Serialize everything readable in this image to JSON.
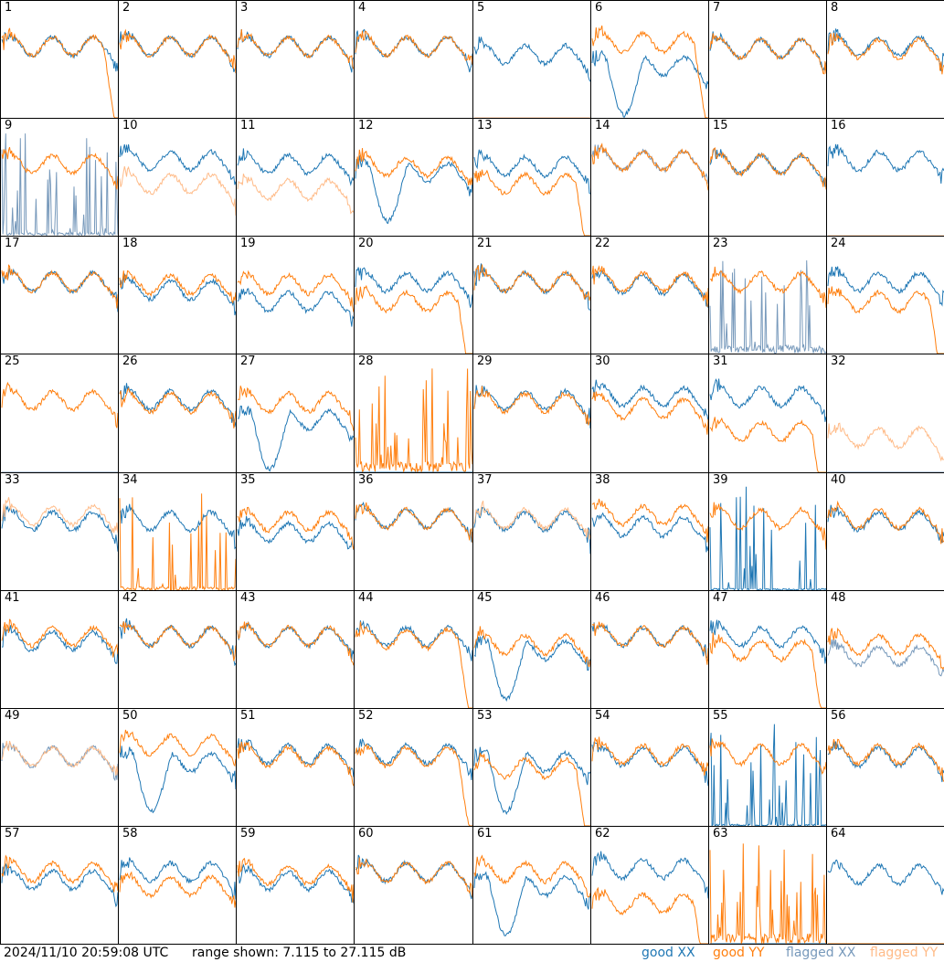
{
  "footer": {
    "timestamp": "2024/11/10 20:59:08 UTC",
    "range_text": "range shown: 7.115 to 27.115 dB",
    "legend": {
      "good_xx": "good XX",
      "good_yy": "good YY",
      "flagged_xx": "flagged XX",
      "flagged_yy": "flagged YY"
    }
  },
  "colors": {
    "good_xx": "#1f77b4",
    "good_yy": "#ff7f0e",
    "flagged_xx": "#7799bb",
    "flagged_yy": "#ffbb88"
  },
  "chart_data": {
    "type": "line",
    "ylim": [
      7.115,
      27.115
    ],
    "grid": false,
    "panels": [
      {
        "label": "1",
        "xx": {
          "shape": "normal",
          "level": 0.62,
          "flag": false
        },
        "yy": {
          "shape": "droop",
          "level": 0.62,
          "flag": false
        }
      },
      {
        "label": "2",
        "xx": {
          "shape": "normal",
          "level": 0.62,
          "flag": false
        },
        "yy": {
          "shape": "normal",
          "level": 0.62,
          "flag": false
        }
      },
      {
        "label": "3",
        "xx": {
          "shape": "normal",
          "level": 0.62,
          "flag": false
        },
        "yy": {
          "shape": "normal",
          "level": 0.62,
          "flag": false
        }
      },
      {
        "label": "4",
        "xx": {
          "shape": "normal",
          "level": 0.62,
          "flag": false
        },
        "yy": {
          "shape": "normal",
          "level": 0.62,
          "flag": false
        }
      },
      {
        "label": "5",
        "xx": {
          "shape": "normal",
          "level": 0.55,
          "flag": false
        },
        "yy": {
          "shape": "zero",
          "level": 0.0,
          "flag": true
        }
      },
      {
        "label": "6",
        "xx": {
          "shape": "dip",
          "level": 0.45,
          "flag": false
        },
        "yy": {
          "shape": "droop",
          "level": 0.65,
          "flag": false
        }
      },
      {
        "label": "7",
        "xx": {
          "shape": "normal",
          "level": 0.6,
          "flag": false
        },
        "yy": {
          "shape": "normal",
          "level": 0.6,
          "flag": false
        }
      },
      {
        "label": "8",
        "xx": {
          "shape": "normal",
          "level": 0.62,
          "flag": false
        },
        "yy": {
          "shape": "normal",
          "level": 0.6,
          "flag": false
        }
      },
      {
        "label": "9",
        "xx": {
          "shape": "spiky",
          "level": 0.1,
          "flag": true
        },
        "yy": {
          "shape": "normal",
          "level": 0.62,
          "flag": false
        }
      },
      {
        "label": "10",
        "xx": {
          "shape": "normal",
          "level": 0.65,
          "flag": false
        },
        "yy": {
          "shape": "normal",
          "level": 0.45,
          "flag": true
        }
      },
      {
        "label": "11",
        "xx": {
          "shape": "normal",
          "level": 0.62,
          "flag": false
        },
        "yy": {
          "shape": "normal",
          "level": 0.4,
          "flag": true
        }
      },
      {
        "label": "12",
        "xx": {
          "shape": "dip",
          "level": 0.55,
          "flag": false
        },
        "yy": {
          "shape": "normal",
          "level": 0.6,
          "flag": false
        }
      },
      {
        "label": "13",
        "xx": {
          "shape": "normal",
          "level": 0.6,
          "flag": false
        },
        "yy": {
          "shape": "droop",
          "level": 0.45,
          "flag": false
        }
      },
      {
        "label": "14",
        "xx": {
          "shape": "normal",
          "level": 0.65,
          "flag": true
        },
        "yy": {
          "shape": "normal",
          "level": 0.65,
          "flag": false
        }
      },
      {
        "label": "15",
        "xx": {
          "shape": "normal",
          "level": 0.62,
          "flag": false
        },
        "yy": {
          "shape": "normal",
          "level": 0.62,
          "flag": false
        }
      },
      {
        "label": "16",
        "xx": {
          "shape": "normal",
          "level": 0.65,
          "flag": false
        },
        "yy": {
          "shape": "zero",
          "level": 0.0,
          "flag": true
        }
      },
      {
        "label": "17",
        "xx": {
          "shape": "normal",
          "level": 0.62,
          "flag": false
        },
        "yy": {
          "shape": "normal",
          "level": 0.62,
          "flag": false
        }
      },
      {
        "label": "18",
        "xx": {
          "shape": "normal",
          "level": 0.55,
          "flag": false
        },
        "yy": {
          "shape": "normal",
          "level": 0.6,
          "flag": false
        }
      },
      {
        "label": "19",
        "xx": {
          "shape": "normal",
          "level": 0.45,
          "flag": false
        },
        "yy": {
          "shape": "normal",
          "level": 0.6,
          "flag": false
        }
      },
      {
        "label": "20",
        "xx": {
          "shape": "normal",
          "level": 0.62,
          "flag": false
        },
        "yy": {
          "shape": "droop",
          "level": 0.45,
          "flag": false
        }
      },
      {
        "label": "21",
        "xx": {
          "shape": "normal",
          "level": 0.62,
          "flag": false
        },
        "yy": {
          "shape": "normal",
          "level": 0.62,
          "flag": false
        }
      },
      {
        "label": "22",
        "xx": {
          "shape": "normal",
          "level": 0.6,
          "flag": false
        },
        "yy": {
          "shape": "normal",
          "level": 0.62,
          "flag": false
        }
      },
      {
        "label": "23",
        "xx": {
          "shape": "spiky",
          "level": 0.25,
          "flag": true
        },
        "yy": {
          "shape": "normal",
          "level": 0.62,
          "flag": false
        }
      },
      {
        "label": "24",
        "xx": {
          "shape": "normal",
          "level": 0.62,
          "flag": false
        },
        "yy": {
          "shape": "droop",
          "level": 0.45,
          "flag": false
        }
      },
      {
        "label": "25",
        "xx": {
          "shape": "zero",
          "level": 0.0,
          "flag": true
        },
        "yy": {
          "shape": "normal",
          "level": 0.62,
          "flag": false
        }
      },
      {
        "label": "26",
        "xx": {
          "shape": "normal",
          "level": 0.62,
          "flag": false
        },
        "yy": {
          "shape": "normal",
          "level": 0.6,
          "flag": false
        }
      },
      {
        "label": "27",
        "xx": {
          "shape": "dip",
          "level": 0.45,
          "flag": false
        },
        "yy": {
          "shape": "normal",
          "level": 0.6,
          "flag": false
        }
      },
      {
        "label": "28",
        "xx": {
          "shape": "zero",
          "level": 0.0,
          "flag": false
        },
        "yy": {
          "shape": "spiky",
          "level": 0.3,
          "flag": false
        }
      },
      {
        "label": "29",
        "xx": {
          "shape": "normal",
          "level": 0.62,
          "flag": false
        },
        "yy": {
          "shape": "normal",
          "level": 0.6,
          "flag": false
        }
      },
      {
        "label": "30",
        "xx": {
          "shape": "normal",
          "level": 0.65,
          "flag": false
        },
        "yy": {
          "shape": "normal",
          "level": 0.55,
          "flag": false
        }
      },
      {
        "label": "31",
        "xx": {
          "shape": "normal",
          "level": 0.65,
          "flag": false
        },
        "yy": {
          "shape": "droop",
          "level": 0.35,
          "flag": false
        }
      },
      {
        "label": "32",
        "xx": {
          "shape": "zero",
          "level": 0.0,
          "flag": true
        },
        "yy": {
          "shape": "normal",
          "level": 0.3,
          "flag": true
        }
      },
      {
        "label": "33",
        "xx": {
          "shape": "normal",
          "level": 0.6,
          "flag": false
        },
        "yy": {
          "shape": "normal",
          "level": 0.65,
          "flag": true
        }
      },
      {
        "label": "34",
        "xx": {
          "shape": "normal",
          "level": 0.6,
          "flag": false
        },
        "yy": {
          "shape": "spiky",
          "level": 0.1,
          "flag": false
        }
      },
      {
        "label": "35",
        "xx": {
          "shape": "normal",
          "level": 0.5,
          "flag": false
        },
        "yy": {
          "shape": "normal",
          "level": 0.6,
          "flag": false
        }
      },
      {
        "label": "36",
        "xx": {
          "shape": "normal",
          "level": 0.62,
          "flag": false
        },
        "yy": {
          "shape": "normal",
          "level": 0.62,
          "flag": false
        }
      },
      {
        "label": "37",
        "xx": {
          "shape": "normal",
          "level": 0.6,
          "flag": false
        },
        "yy": {
          "shape": "normal",
          "level": 0.62,
          "flag": true
        }
      },
      {
        "label": "38",
        "xx": {
          "shape": "normal",
          "level": 0.55,
          "flag": false
        },
        "yy": {
          "shape": "normal",
          "level": 0.65,
          "flag": false
        }
      },
      {
        "label": "39",
        "xx": {
          "shape": "spiky",
          "level": 0.05,
          "flag": false
        },
        "yy": {
          "shape": "normal",
          "level": 0.62,
          "flag": false
        }
      },
      {
        "label": "40",
        "xx": {
          "shape": "normal",
          "level": 0.6,
          "flag": false
        },
        "yy": {
          "shape": "normal",
          "level": 0.62,
          "flag": false
        }
      },
      {
        "label": "41",
        "xx": {
          "shape": "normal",
          "level": 0.58,
          "flag": false
        },
        "yy": {
          "shape": "normal",
          "level": 0.62,
          "flag": false
        }
      },
      {
        "label": "42",
        "xx": {
          "shape": "normal",
          "level": 0.62,
          "flag": false
        },
        "yy": {
          "shape": "normal",
          "level": 0.62,
          "flag": false
        }
      },
      {
        "label": "43",
        "xx": {
          "shape": "normal",
          "level": 0.62,
          "flag": false
        },
        "yy": {
          "shape": "normal",
          "level": 0.62,
          "flag": false
        }
      },
      {
        "label": "44",
        "xx": {
          "shape": "normal",
          "level": 0.62,
          "flag": false
        },
        "yy": {
          "shape": "droop",
          "level": 0.6,
          "flag": false
        }
      },
      {
        "label": "45",
        "xx": {
          "shape": "dip",
          "level": 0.5,
          "flag": false
        },
        "yy": {
          "shape": "normal",
          "level": 0.55,
          "flag": false
        }
      },
      {
        "label": "46",
        "xx": {
          "shape": "normal",
          "level": 0.62,
          "flag": false
        },
        "yy": {
          "shape": "normal",
          "level": 0.62,
          "flag": false
        }
      },
      {
        "label": "47",
        "xx": {
          "shape": "normal",
          "level": 0.62,
          "flag": false
        },
        "yy": {
          "shape": "droop",
          "level": 0.5,
          "flag": false
        }
      },
      {
        "label": "48",
        "xx": {
          "shape": "normal",
          "level": 0.45,
          "flag": true
        },
        "yy": {
          "shape": "normal",
          "level": 0.55,
          "flag": false
        }
      },
      {
        "label": "49",
        "xx": {
          "shape": "normal",
          "level": 0.6,
          "flag": true
        },
        "yy": {
          "shape": "normal",
          "level": 0.6,
          "flag": true
        }
      },
      {
        "label": "50",
        "xx": {
          "shape": "dip",
          "level": 0.55,
          "flag": false
        },
        "yy": {
          "shape": "normal",
          "level": 0.7,
          "flag": false
        }
      },
      {
        "label": "51",
        "xx": {
          "shape": "normal",
          "level": 0.62,
          "flag": false
        },
        "yy": {
          "shape": "normal",
          "level": 0.6,
          "flag": false
        }
      },
      {
        "label": "52",
        "xx": {
          "shape": "normal",
          "level": 0.62,
          "flag": false
        },
        "yy": {
          "shape": "droop",
          "level": 0.6,
          "flag": false
        }
      },
      {
        "label": "53",
        "xx": {
          "shape": "dip",
          "level": 0.55,
          "flag": false
        },
        "yy": {
          "shape": "droop",
          "level": 0.5,
          "flag": false
        }
      },
      {
        "label": "54",
        "xx": {
          "shape": "normal",
          "level": 0.6,
          "flag": false
        },
        "yy": {
          "shape": "normal",
          "level": 0.62,
          "flag": false
        }
      },
      {
        "label": "55",
        "xx": {
          "shape": "spiky",
          "level": 0.05,
          "flag": false
        },
        "yy": {
          "shape": "normal",
          "level": 0.62,
          "flag": false
        }
      },
      {
        "label": "56",
        "xx": {
          "shape": "normal",
          "level": 0.6,
          "flag": false
        },
        "yy": {
          "shape": "normal",
          "level": 0.62,
          "flag": false
        }
      },
      {
        "label": "57",
        "xx": {
          "shape": "normal",
          "level": 0.55,
          "flag": false
        },
        "yy": {
          "shape": "normal",
          "level": 0.62,
          "flag": false
        }
      },
      {
        "label": "58",
        "xx": {
          "shape": "normal",
          "level": 0.62,
          "flag": false
        },
        "yy": {
          "shape": "normal",
          "level": 0.5,
          "flag": false
        }
      },
      {
        "label": "59",
        "xx": {
          "shape": "normal",
          "level": 0.55,
          "flag": false
        },
        "yy": {
          "shape": "normal",
          "level": 0.6,
          "flag": false
        }
      },
      {
        "label": "60",
        "xx": {
          "shape": "normal",
          "level": 0.62,
          "flag": false
        },
        "yy": {
          "shape": "normal",
          "level": 0.62,
          "flag": false
        }
      },
      {
        "label": "61",
        "xx": {
          "shape": "dip",
          "level": 0.5,
          "flag": false
        },
        "yy": {
          "shape": "normal",
          "level": 0.62,
          "flag": false
        }
      },
      {
        "label": "62",
        "xx": {
          "shape": "normal",
          "level": 0.65,
          "flag": false
        },
        "yy": {
          "shape": "droop",
          "level": 0.35,
          "flag": false
        }
      },
      {
        "label": "63",
        "xx": {
          "shape": "zero",
          "level": 0.0,
          "flag": false
        },
        "yy": {
          "shape": "spiky",
          "level": 0.3,
          "flag": false
        }
      },
      {
        "label": "64",
        "xx": {
          "shape": "normal",
          "level": 0.6,
          "flag": false
        },
        "yy": {
          "shape": "zero",
          "level": 0.0,
          "flag": false
        }
      }
    ]
  }
}
